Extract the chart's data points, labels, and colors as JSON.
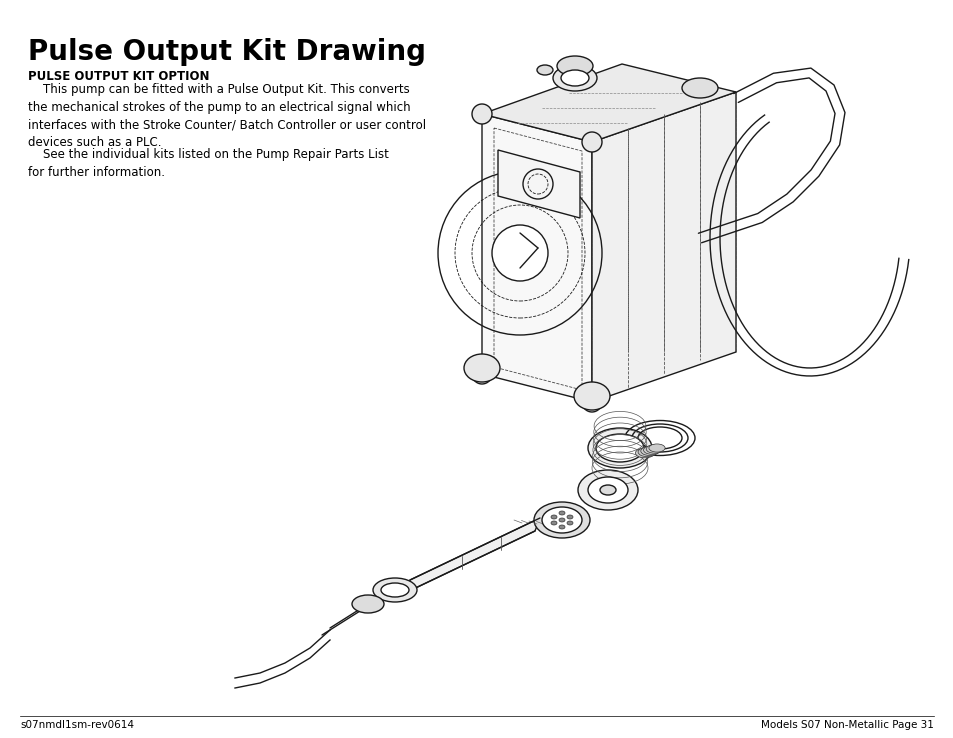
{
  "title": "Pulse Output Kit Drawing",
  "subtitle_bold": "PULSE OUTPUT KIT OPTION",
  "body_text_1": "    This pump can be fitted with a Pulse Output Kit. This converts\nthe mechanical strokes of the pump to an electrical signal which\ninterfaces with the Stroke Counter/ Batch Controller or user control\ndevices such as a PLC.",
  "body_text_2": "    See the individual kits listed on the Pump Repair Parts List\nfor further information.",
  "footer_left": "s07nmdl1sm-rev0614",
  "footer_right": "Models S07 Non-Metallic Page 31",
  "bg_color": "#ffffff",
  "text_color": "#000000",
  "title_fontsize": 20,
  "subtitle_fontsize": 8.5,
  "body_fontsize": 8.5,
  "footer_fontsize": 7.5,
  "fig_width": 9.54,
  "fig_height": 7.38
}
